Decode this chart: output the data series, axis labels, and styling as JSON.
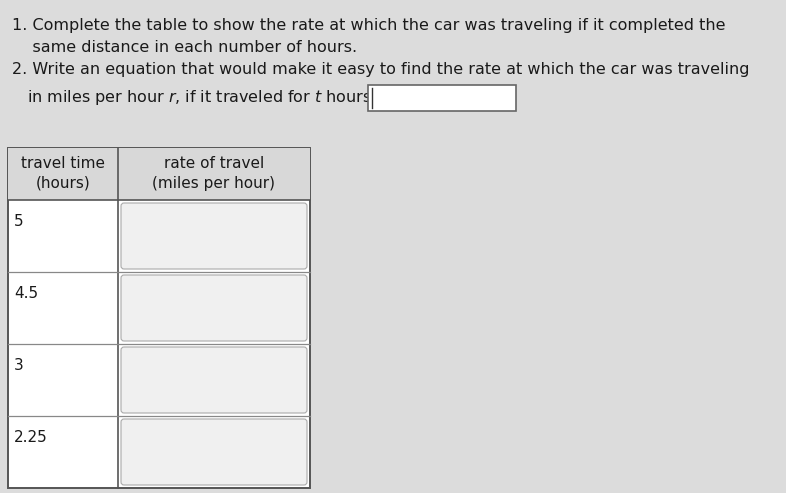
{
  "bg_color": "#dcdcdc",
  "text_color": "#1a1a1a",
  "line1": "1. Complete the table to show the rate at which the car was traveling if it completed the",
  "line2": "    same distance in each number of hours.",
  "line3": "2. Write an equation that would make it easy to find the rate at which the car was traveling",
  "line4_pre": "   in miles per hour ",
  "line4_r": "r",
  "line4_mid": ", if it traveled for ",
  "line4_t": "t",
  "line4_post": " hours.",
  "table_rows": [
    "5",
    "4.5",
    "3",
    "2.25"
  ],
  "col1_header_line1": "travel time",
  "col1_header_line2": "(hours)",
  "col2_header_line1": "rate of travel",
  "col2_header_line2": "(miles per hour)",
  "font_size": 11.5,
  "font_size_table": 11.0
}
